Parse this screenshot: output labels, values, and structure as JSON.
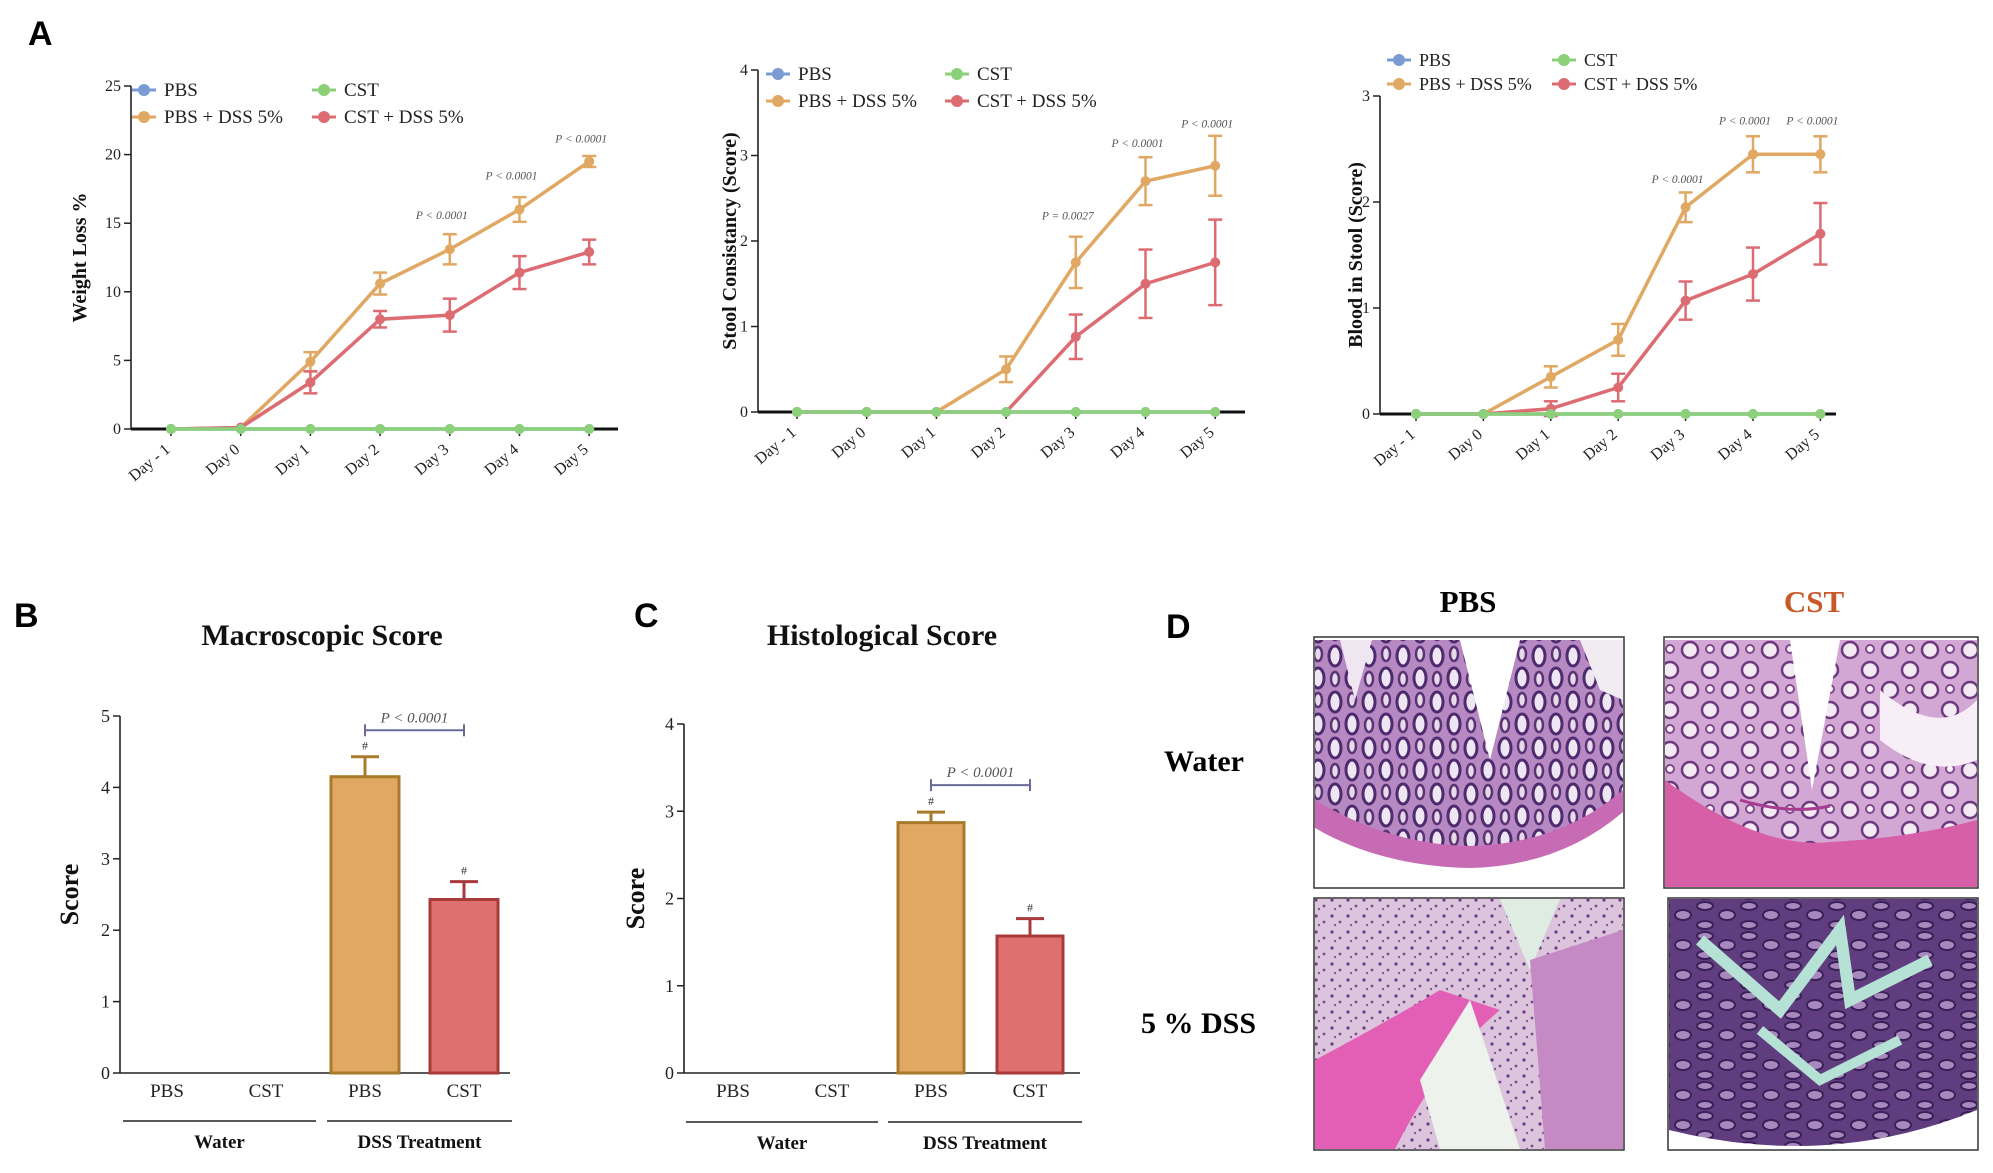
{
  "colors": {
    "pbs": "#7a9bd4",
    "cst": "#8cd07a",
    "pbs_dss": "#e0a862",
    "cst_dss": "#dd6b72",
    "bar_pbs_fill": "#e0a862",
    "bar_pbs_edge": "#a87a2a",
    "bar_cst_fill": "#e07070",
    "bar_cst_edge": "#a83a3a",
    "bracket": "#6a6a9a",
    "cst_heading": "#c85a2a"
  },
  "panels": {
    "A": "A",
    "B": "B",
    "C": "C",
    "D": "D"
  },
  "chart_data": [
    {
      "id": "weight",
      "type": "line",
      "ylabel": "Weight Loss %",
      "ylim": [
        0,
        25
      ],
      "yticks": [
        "0",
        "5",
        "10",
        "15",
        "20",
        "25"
      ],
      "categories": [
        "Day - 1",
        "Day 0",
        "Day 1",
        "Day 2",
        "Day 3",
        "Day 4",
        "Day 5"
      ],
      "legend": [
        "PBS",
        "CST",
        "PBS + DSS 5%",
        "CST + DSS 5%"
      ],
      "series": [
        {
          "name": "PBS",
          "values": [
            0,
            0,
            0,
            0,
            0,
            0,
            0
          ],
          "err": [
            0,
            0,
            0,
            0,
            0,
            0,
            0
          ]
        },
        {
          "name": "CST",
          "values": [
            0,
            0,
            0,
            0,
            0,
            0,
            0
          ],
          "err": [
            0,
            0,
            0,
            0,
            0,
            0,
            0
          ]
        },
        {
          "name": "PBS + DSS 5%",
          "values": [
            0,
            0.1,
            4.9,
            10.6,
            13.1,
            16,
            19.5
          ],
          "err": [
            0,
            0,
            0.7,
            0.8,
            1.1,
            0.9,
            0.4
          ]
        },
        {
          "name": "CST + DSS 5%",
          "values": [
            0,
            0.1,
            3.4,
            8,
            8.3,
            11.4,
            12.9
          ],
          "err": [
            0,
            0,
            0.8,
            0.6,
            1.2,
            1.2,
            0.9
          ]
        }
      ],
      "annotations": [
        {
          "index": 4,
          "y": 15.3,
          "text": "P < 0.0001"
        },
        {
          "index": 5,
          "y": 18.2,
          "text": "P < 0.0001"
        },
        {
          "index": 6,
          "y": 20.9,
          "text": "P < 0.0001"
        }
      ]
    },
    {
      "id": "stool",
      "type": "line",
      "ylabel": "Stool Consistancy (Score)",
      "ylim": [
        0,
        4
      ],
      "yticks": [
        "0",
        "1",
        "2",
        "3",
        "4"
      ],
      "categories": [
        "Day - 1",
        "Day 0",
        "Day 1",
        "Day 2",
        "Day 3",
        "Day 4",
        "Day 5"
      ],
      "legend": [
        "PBS",
        "CST",
        "PBS + DSS 5%",
        "CST + DSS 5%"
      ],
      "series": [
        {
          "name": "PBS",
          "values": [
            0,
            0,
            0,
            0,
            0,
            0,
            0
          ],
          "err": [
            0,
            0,
            0,
            0,
            0,
            0,
            0
          ]
        },
        {
          "name": "CST",
          "values": [
            0,
            0,
            0,
            0,
            0,
            0,
            0
          ],
          "err": [
            0,
            0,
            0,
            0,
            0,
            0,
            0
          ]
        },
        {
          "name": "PBS + DSS 5%",
          "values": [
            0,
            0,
            0,
            0.5,
            1.75,
            2.7,
            2.88
          ],
          "err": [
            0,
            0,
            0,
            0.15,
            0.3,
            0.28,
            0.35
          ]
        },
        {
          "name": "CST + DSS 5%",
          "values": [
            0,
            0,
            0,
            0,
            0.88,
            1.5,
            1.75
          ],
          "err": [
            0,
            0,
            0,
            0,
            0.26,
            0.4,
            0.5
          ]
        }
      ],
      "annotations": [
        {
          "index": 4,
          "y": 2.25,
          "text": "P = 0.0027"
        },
        {
          "index": 5,
          "y": 3.1,
          "text": "P < 0.0001"
        },
        {
          "index": 6,
          "y": 3.33,
          "text": "P < 0.0001"
        }
      ]
    },
    {
      "id": "blood",
      "type": "line",
      "ylabel": "Blood in Stool (Score)",
      "ylim": [
        0,
        3
      ],
      "yticks": [
        "0",
        "1",
        "2",
        "3"
      ],
      "categories": [
        "Day - 1",
        "Day 0",
        "Day 1",
        "Day 2",
        "Day 3",
        "Day 4",
        "Day 5"
      ],
      "legend": [
        "PBS",
        "CST",
        "PBS + DSS 5%",
        "CST + DSS 5%"
      ],
      "series": [
        {
          "name": "PBS",
          "values": [
            0,
            0,
            0,
            0,
            0,
            0,
            0
          ],
          "err": [
            0,
            0,
            0,
            0,
            0,
            0,
            0
          ]
        },
        {
          "name": "CST",
          "values": [
            0,
            0,
            0,
            0,
            0,
            0,
            0
          ],
          "err": [
            0,
            0,
            0,
            0,
            0,
            0,
            0
          ]
        },
        {
          "name": "PBS + DSS 5%",
          "values": [
            0,
            0,
            0.35,
            0.7,
            1.95,
            2.45,
            2.45
          ],
          "err": [
            0,
            0,
            0.1,
            0.15,
            0.14,
            0.17,
            0.17
          ]
        },
        {
          "name": "CST + DSS 5%",
          "values": [
            0,
            0,
            0.05,
            0.25,
            1.07,
            1.32,
            1.7
          ],
          "err": [
            0,
            0,
            0.07,
            0.13,
            0.18,
            0.25,
            0.29
          ]
        }
      ],
      "annotations": [
        {
          "index": 4,
          "y": 2.18,
          "text": "P < 0.0001"
        },
        {
          "index": 5,
          "y": 2.73,
          "text": "P < 0.0001"
        },
        {
          "index": 6,
          "y": 2.73,
          "text": "P < 0.0001"
        }
      ]
    },
    {
      "id": "macro",
      "type": "bar",
      "title": "Macroscopic Score",
      "ylabel": "Score",
      "ylim": [
        0,
        5
      ],
      "yticks": [
        "0",
        "1",
        "2",
        "3",
        "4",
        "5"
      ],
      "categories": [
        "PBS",
        "CST",
        "PBS",
        "CST"
      ],
      "values": [
        0,
        0,
        4.15,
        2.43
      ],
      "err": [
        0,
        0,
        0.28,
        0.25
      ],
      "marks": [
        "",
        "",
        "#",
        "#"
      ],
      "groups": [
        "Water",
        "DSS Treatment"
      ],
      "bracket": {
        "from": 2,
        "to": 3,
        "y": 4.8,
        "text": "P  < 0.0001"
      }
    },
    {
      "id": "histo",
      "type": "bar",
      "title": "Histological Score",
      "ylabel": "Score",
      "ylim": [
        0,
        4
      ],
      "yticks": [
        "0",
        "1",
        "2",
        "3",
        "4"
      ],
      "categories": [
        "PBS",
        "CST",
        "PBS",
        "CST"
      ],
      "values": [
        0,
        0,
        2.87,
        1.57
      ],
      "err": [
        0,
        0,
        0.12,
        0.2
      ],
      "marks": [
        "",
        "",
        "#",
        "#"
      ],
      "groups": [
        "Water",
        "DSS Treatment"
      ],
      "bracket": {
        "from": 2,
        "to": 3,
        "y": 3.3,
        "text": "P  < 0.0001"
      }
    }
  ],
  "histology": {
    "columns": [
      "PBS",
      "CST"
    ],
    "rows": [
      "Water",
      "5 % DSS"
    ]
  }
}
